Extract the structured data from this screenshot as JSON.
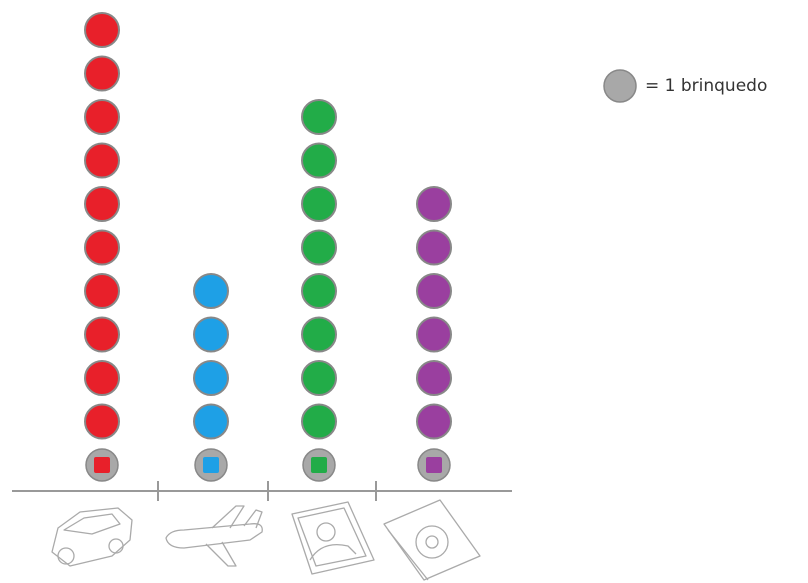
{
  "chart_data": {
    "type": "pictograph",
    "categories": [
      null,
      null,
      null,
      null
    ],
    "values": [
      10,
      4,
      8,
      6
    ],
    "colors": [
      "#e8202a",
      "#1ea0e6",
      "#22ac48",
      "#9a3f9f"
    ],
    "legend": "= 1 brinquedo"
  }
}
